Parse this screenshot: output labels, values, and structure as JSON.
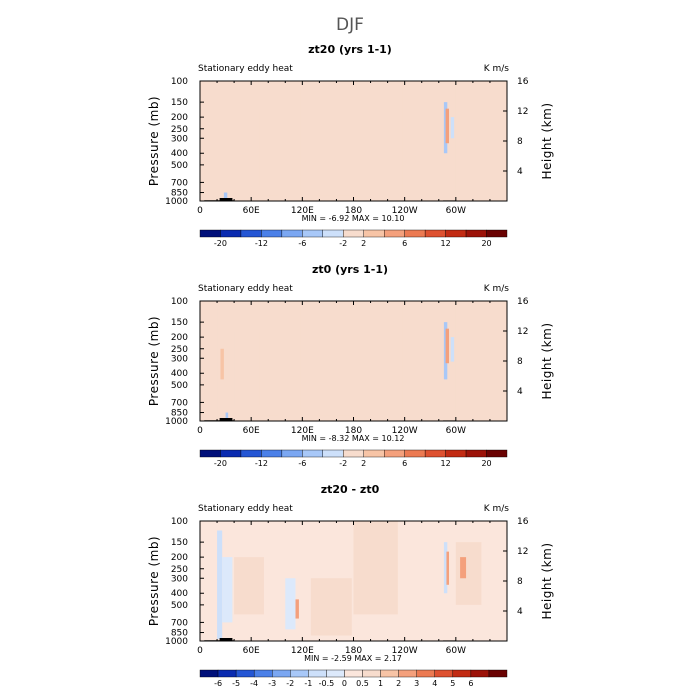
{
  "figure": {
    "title": "DJF"
  },
  "colors": {
    "eleven": [
      "#00107a",
      "#0a2bb0",
      "#2456d4",
      "#4b80e8",
      "#7ba7f2",
      "#a8c8f8",
      "#cde0fa",
      "#f7dccd",
      "#f7c4a6",
      "#f4a07c",
      "#ec7a52",
      "#de5130",
      "#c22b13",
      "#9c1208",
      "#6a0202"
    ],
    "twelve": [
      "#00107a",
      "#0a2bb0",
      "#2456d4",
      "#4b80e8",
      "#7ba7f2",
      "#a8c8f8",
      "#cde0fa",
      "#dce9fb",
      "#fbe6dc",
      "#f7dccd",
      "#f7c4a6",
      "#f4a07c",
      "#ec7a52",
      "#de5130",
      "#c22b13",
      "#9c1208",
      "#6a0202"
    ]
  },
  "chart_data": [
    {
      "type": "heatmap",
      "title": "zt20 (yrs 1-1)",
      "left_label": "Stationary eddy heat",
      "units": "K m/s",
      "xlabel": "",
      "ylabel": "Pressure (mb)",
      "y2label": "Height (km)",
      "xticks": [
        "0",
        "60E",
        "120E",
        "180",
        "120W",
        "60W"
      ],
      "xtick_values": [
        0,
        60,
        120,
        180,
        240,
        300
      ],
      "xlim": [
        0,
        360
      ],
      "yticks": [
        "100",
        "150",
        "200",
        "250",
        "300",
        "400",
        "500",
        "700",
        "850",
        "1000"
      ],
      "ytick_values": [
        100,
        150,
        200,
        250,
        300,
        400,
        500,
        700,
        850,
        1000
      ],
      "ylim": [
        100,
        1000
      ],
      "y2ticks": [
        "16",
        "12",
        "8",
        "4"
      ],
      "y2tick_values": [
        16,
        12,
        8,
        4
      ],
      "min_text": "MIN =   -6.92   MAX =   10.10",
      "colorbar_labels": [
        "-20",
        "-12",
        "-6",
        "-2",
        "2",
        "6",
        "12",
        "20"
      ],
      "colorbar_levels": [
        "-24",
        "-20",
        "-16",
        "-12",
        "-8",
        "-6",
        "-4",
        "-2",
        "2",
        "4",
        "6",
        "8",
        "12",
        "16",
        "20",
        "24"
      ],
      "field": [
        {
          "lon": [
            0,
            10
          ],
          "p": [
            100,
            1000
          ],
          "v": -0.5
        },
        {
          "lon": [
            10,
            22
          ],
          "p": [
            100,
            1000
          ],
          "v": 0.5
        },
        {
          "lon": [
            22,
            42
          ],
          "p": [
            100,
            960
          ],
          "v": -1.0
        },
        {
          "lon": [
            28,
            32
          ],
          "p": [
            850,
            1000
          ],
          "v": -4.0
        },
        {
          "lon": [
            42,
            70
          ],
          "p": [
            180,
            750
          ],
          "v": 0.5
        },
        {
          "lon": [
            70,
            92
          ],
          "p": [
            100,
            900
          ],
          "v": -0.5
        },
        {
          "lon": [
            95,
            118
          ],
          "p": [
            100,
            1000
          ],
          "v": -1.0
        },
        {
          "lon": [
            128,
            178
          ],
          "p": [
            250,
            900
          ],
          "v": 0.5
        },
        {
          "lon": [
            180,
            232
          ],
          "p": [
            100,
            600
          ],
          "v": 0.5
        },
        {
          "lon": [
            238,
            262
          ],
          "p": [
            100,
            1000
          ],
          "v": -0.5
        },
        {
          "lon": [
            286,
            290
          ],
          "p": [
            150,
            400
          ],
          "v": -4.0
        },
        {
          "lon": [
            288,
            292
          ],
          "p": [
            170,
            330
          ],
          "v": 5.0
        },
        {
          "lon": [
            294,
            298
          ],
          "p": [
            200,
            300
          ],
          "v": -3.0
        },
        {
          "lon": [
            300,
            335
          ],
          "p": [
            100,
            1000
          ],
          "v": -0.5
        }
      ],
      "terrain": [
        {
          "lon": [
            5,
            40
          ],
          "height": 0.05
        },
        {
          "lon": [
            23,
            38
          ],
          "height": 0.2
        },
        {
          "lon": [
            285,
            300
          ],
          "height": 0.04
        }
      ]
    },
    {
      "type": "heatmap",
      "title": "zt0 (yrs 1-1)",
      "left_label": "Stationary eddy heat",
      "units": "K m/s",
      "xlabel": "",
      "ylabel": "Pressure (mb)",
      "y2label": "Height (km)",
      "xticks": [
        "0",
        "60E",
        "120E",
        "180",
        "120W",
        "60W"
      ],
      "xtick_values": [
        0,
        60,
        120,
        180,
        240,
        300
      ],
      "xlim": [
        0,
        360
      ],
      "yticks": [
        "100",
        "150",
        "200",
        "250",
        "300",
        "400",
        "500",
        "700",
        "850",
        "1000"
      ],
      "ytick_values": [
        100,
        150,
        200,
        250,
        300,
        400,
        500,
        700,
        850,
        1000
      ],
      "ylim": [
        100,
        1000
      ],
      "y2ticks": [
        "16",
        "12",
        "8",
        "4"
      ],
      "y2tick_values": [
        16,
        12,
        8,
        4
      ],
      "min_text": "MIN =   -8.32   MAX =   10.12",
      "colorbar_labels": [
        "-20",
        "-12",
        "-6",
        "-2",
        "2",
        "6",
        "12",
        "20"
      ],
      "colorbar_levels": [
        "-24",
        "-20",
        "-16",
        "-12",
        "-8",
        "-6",
        "-4",
        "-2",
        "2",
        "4",
        "6",
        "8",
        "12",
        "16",
        "20",
        "24"
      ],
      "field": [
        {
          "lon": [
            0,
            20
          ],
          "p": [
            100,
            1000
          ],
          "v": -0.5
        },
        {
          "lon": [
            22,
            36
          ],
          "p": [
            100,
            960
          ],
          "v": -1.0
        },
        {
          "lon": [
            24,
            28
          ],
          "p": [
            250,
            450
          ],
          "v": 3.0
        },
        {
          "lon": [
            30,
            33
          ],
          "p": [
            850,
            1000
          ],
          "v": -4.0
        },
        {
          "lon": [
            40,
            70
          ],
          "p": [
            180,
            750
          ],
          "v": 0.5
        },
        {
          "lon": [
            70,
            92
          ],
          "p": [
            100,
            900
          ],
          "v": -0.5
        },
        {
          "lon": [
            95,
            118
          ],
          "p": [
            100,
            1000
          ],
          "v": -1.0
        },
        {
          "lon": [
            128,
            178
          ],
          "p": [
            250,
            900
          ],
          "v": 0.5
        },
        {
          "lon": [
            180,
            232
          ],
          "p": [
            100,
            600
          ],
          "v": 0.5
        },
        {
          "lon": [
            238,
            262
          ],
          "p": [
            100,
            1000
          ],
          "v": -0.5
        },
        {
          "lon": [
            286,
            290
          ],
          "p": [
            150,
            450
          ],
          "v": -4.0
        },
        {
          "lon": [
            288,
            292
          ],
          "p": [
            170,
            330
          ],
          "v": 5.0
        },
        {
          "lon": [
            294,
            298
          ],
          "p": [
            200,
            320
          ],
          "v": -3.0
        },
        {
          "lon": [
            300,
            335
          ],
          "p": [
            100,
            1000
          ],
          "v": -0.5
        }
      ],
      "terrain": [
        {
          "lon": [
            5,
            40
          ],
          "height": 0.05
        },
        {
          "lon": [
            23,
            38
          ],
          "height": 0.2
        },
        {
          "lon": [
            285,
            300
          ],
          "height": 0.04
        }
      ]
    },
    {
      "type": "heatmap",
      "title": "zt20 - zt0",
      "left_label": "Stationary eddy heat",
      "units": "K m/s",
      "xlabel": "",
      "ylabel": "Pressure (mb)",
      "y2label": "Height (km)",
      "xticks": [
        "0",
        "60E",
        "120E",
        "180",
        "120W",
        "60W"
      ],
      "xtick_values": [
        0,
        60,
        120,
        180,
        240,
        300
      ],
      "xlim": [
        0,
        360
      ],
      "yticks": [
        "100",
        "150",
        "200",
        "250",
        "300",
        "400",
        "500",
        "700",
        "850",
        "1000"
      ],
      "ytick_values": [
        100,
        150,
        200,
        250,
        300,
        400,
        500,
        700,
        850,
        1000
      ],
      "ylim": [
        100,
        1000
      ],
      "y2ticks": [
        "16",
        "12",
        "8",
        "4"
      ],
      "y2tick_values": [
        16,
        12,
        8,
        4
      ],
      "min_text": "MIN =   -2.59   MAX =    2.17",
      "colorbar_labels": [
        "-6",
        "-5",
        "-4",
        "-3",
        "-2",
        "-1",
        "-0.5",
        "0",
        "0.5",
        "1",
        "2",
        "3",
        "4",
        "5",
        "6"
      ],
      "colorbar_levels": [
        "-6",
        "-5",
        "-4",
        "-3",
        "-2",
        "-1",
        "-0.5",
        "0",
        "0.5",
        "1",
        "2",
        "3",
        "4",
        "5",
        "6"
      ],
      "field": [
        {
          "lon": [
            0,
            14
          ],
          "p": [
            100,
            1000
          ],
          "v": -0.3
        },
        {
          "lon": [
            20,
            26
          ],
          "p": [
            120,
            960
          ],
          "v": -1.5
        },
        {
          "lon": [
            26,
            38
          ],
          "p": [
            200,
            700
          ],
          "v": -0.7
        },
        {
          "lon": [
            40,
            75
          ],
          "p": [
            200,
            600
          ],
          "v": 0.2
        },
        {
          "lon": [
            80,
            92
          ],
          "p": [
            100,
            1000
          ],
          "v": -0.3
        },
        {
          "lon": [
            100,
            112
          ],
          "p": [
            300,
            800
          ],
          "v": -0.7
        },
        {
          "lon": [
            112,
            116
          ],
          "p": [
            450,
            650
          ],
          "v": 1.5
        },
        {
          "lon": [
            130,
            178
          ],
          "p": [
            300,
            900
          ],
          "v": 0.2
        },
        {
          "lon": [
            180,
            232
          ],
          "p": [
            100,
            600
          ],
          "v": 0.2
        },
        {
          "lon": [
            286,
            290
          ],
          "p": [
            150,
            400
          ],
          "v": -1.5
        },
        {
          "lon": [
            289,
            292
          ],
          "p": [
            180,
            340
          ],
          "v": 1.5
        },
        {
          "lon": [
            300,
            330
          ],
          "p": [
            150,
            500
          ],
          "v": 0.2
        },
        {
          "lon": [
            305,
            312
          ],
          "p": [
            200,
            300
          ],
          "v": 1.5
        }
      ],
      "terrain": [
        {
          "lon": [
            5,
            40
          ],
          "height": 0.05
        },
        {
          "lon": [
            23,
            38
          ],
          "height": 0.2
        },
        {
          "lon": [
            285,
            300
          ],
          "height": 0.04
        }
      ]
    }
  ]
}
